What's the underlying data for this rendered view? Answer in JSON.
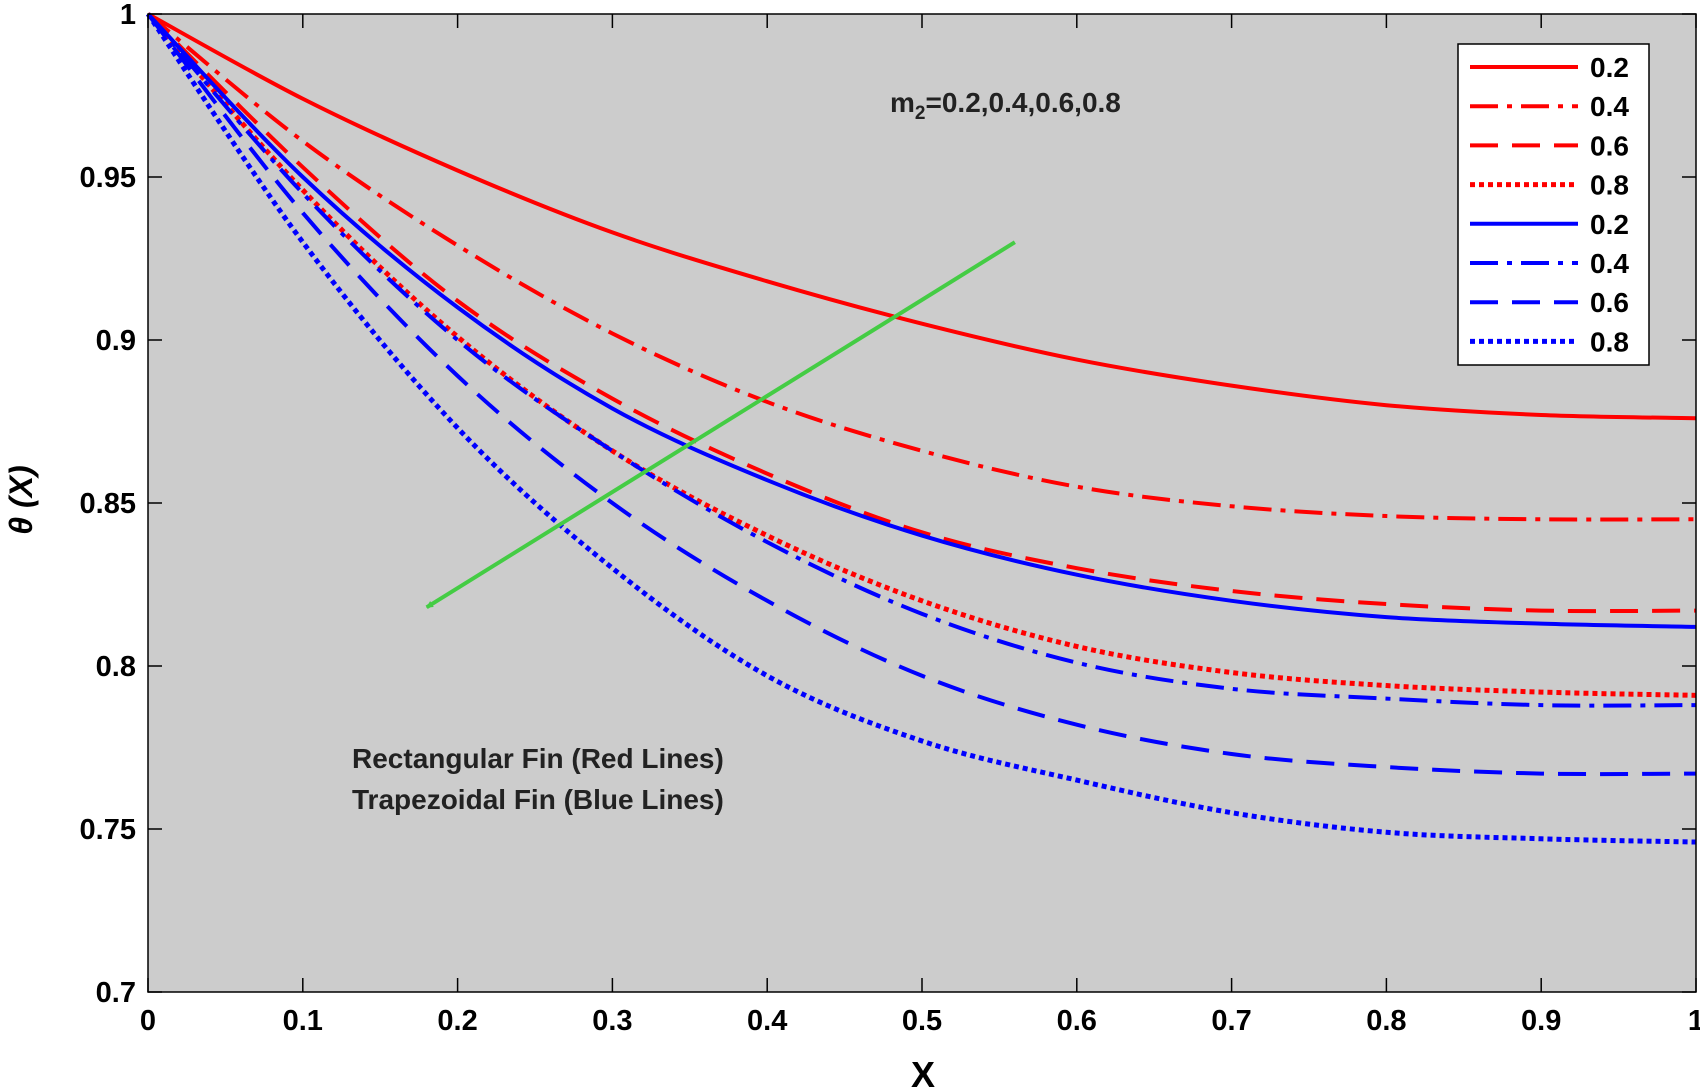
{
  "chart_data": {
    "type": "line",
    "xlabel": "X",
    "ylabel": "θ (X)",
    "xlim": [
      0,
      1
    ],
    "ylim": [
      0.7,
      1
    ],
    "x_ticks": [
      "0",
      "0.1",
      "0.2",
      "0.3",
      "0.4",
      "0.5",
      "0.6",
      "0.7",
      "0.8",
      "0.9",
      "1"
    ],
    "y_ticks": [
      "0.7",
      "0.75",
      "0.8",
      "0.85",
      "0.9",
      "0.95",
      "1"
    ],
    "background": "#cccccc",
    "legend_position": "top-right",
    "annotations": {
      "param_prefix": "m",
      "param_subscript": "2",
      "param_values": "=0.2,0.4,0.6,0.8",
      "line1": "Rectangular Fin (Red Lines)",
      "line2": "Trapezoidal Fin (Blue Lines)"
    },
    "arrow": {
      "color": "#44cc44",
      "from": [
        0.56,
        0.93
      ],
      "to": [
        0.18,
        0.818
      ]
    },
    "x": [
      0,
      0.1,
      0.2,
      0.3,
      0.4,
      0.5,
      0.6,
      0.7,
      0.8,
      0.9,
      1.0
    ],
    "series": [
      {
        "name": "0.2",
        "fin": "rectangular",
        "color": "#ff0000",
        "style": "solid",
        "values": [
          1.0,
          0.974,
          0.952,
          0.933,
          0.918,
          0.905,
          0.894,
          0.886,
          0.88,
          0.877,
          0.876
        ]
      },
      {
        "name": "0.4",
        "fin": "rectangular",
        "color": "#ff0000",
        "style": "dashdot",
        "values": [
          1.0,
          0.961,
          0.929,
          0.902,
          0.881,
          0.866,
          0.855,
          0.849,
          0.846,
          0.845,
          0.845
        ]
      },
      {
        "name": "0.6",
        "fin": "rectangular",
        "color": "#ff0000",
        "style": "dashed",
        "values": [
          1.0,
          0.953,
          0.912,
          0.882,
          0.859,
          0.841,
          0.83,
          0.823,
          0.819,
          0.817,
          0.817
        ]
      },
      {
        "name": "0.8",
        "fin": "rectangular",
        "color": "#ff0000",
        "style": "dotted",
        "values": [
          1.0,
          0.946,
          0.901,
          0.866,
          0.84,
          0.82,
          0.806,
          0.798,
          0.794,
          0.792,
          0.791
        ]
      },
      {
        "name": "0.2",
        "fin": "trapezoidal",
        "color": "#0000ff",
        "style": "solid",
        "values": [
          1.0,
          0.95,
          0.91,
          0.879,
          0.857,
          0.84,
          0.828,
          0.82,
          0.815,
          0.813,
          0.812
        ]
      },
      {
        "name": "0.4",
        "fin": "trapezoidal",
        "color": "#0000ff",
        "style": "dashdot",
        "values": [
          1.0,
          0.945,
          0.9,
          0.866,
          0.838,
          0.816,
          0.801,
          0.793,
          0.79,
          0.788,
          0.788
        ]
      },
      {
        "name": "0.6",
        "fin": "trapezoidal",
        "color": "#0000ff",
        "style": "dashed",
        "values": [
          1.0,
          0.939,
          0.889,
          0.85,
          0.82,
          0.797,
          0.782,
          0.773,
          0.769,
          0.767,
          0.767
        ]
      },
      {
        "name": "0.8",
        "fin": "trapezoidal",
        "color": "#0000ff",
        "style": "dotted",
        "values": [
          1.0,
          0.93,
          0.873,
          0.83,
          0.797,
          0.777,
          0.765,
          0.755,
          0.749,
          0.747,
          0.746
        ]
      }
    ]
  }
}
